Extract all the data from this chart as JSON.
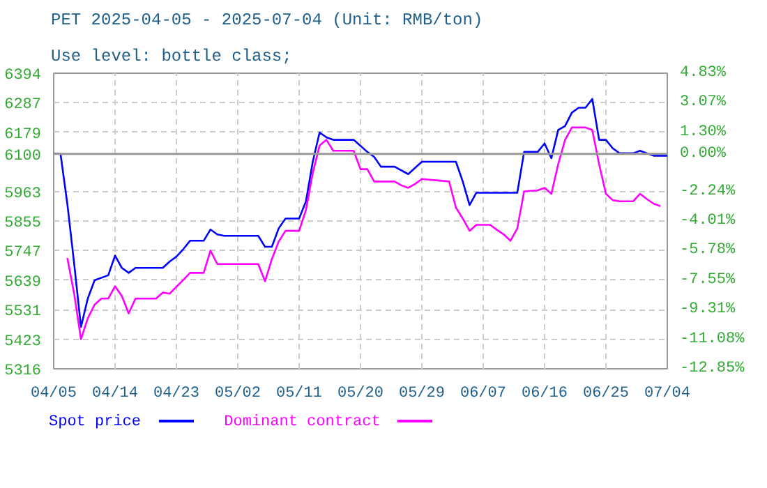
{
  "chart_data": {
    "type": "line",
    "title": "PET 2025-04-05 - 2025-07-04  (Unit: RMB/ton)",
    "subtitle": "Use level: bottle class;",
    "xlim": [
      "2025-04-05",
      "2025-07-04"
    ],
    "xticks": [
      {
        "value": "2025-04-05",
        "label": "04/05"
      },
      {
        "value": "2025-04-14",
        "label": "04/14"
      },
      {
        "value": "2025-04-23",
        "label": "04/23"
      },
      {
        "value": "2025-05-02",
        "label": "05/02"
      },
      {
        "value": "2025-05-11",
        "label": "05/11"
      },
      {
        "value": "2025-05-20",
        "label": "05/20"
      },
      {
        "value": "2025-05-29",
        "label": "05/29"
      },
      {
        "value": "2025-06-07",
        "label": "06/07"
      },
      {
        "value": "2025-06-16",
        "label": "06/16"
      },
      {
        "value": "2025-06-25",
        "label": "06/25"
      },
      {
        "value": "2025-07-04",
        "label": "07/04"
      }
    ],
    "ylim": [
      5316,
      6394
    ],
    "yticks": [
      5316,
      5423,
      5531,
      5639,
      5747,
      5855,
      5963,
      6100,
      6179,
      6287,
      6394
    ],
    "y2lim": [
      -12.85,
      4.83
    ],
    "y2ticks": [
      {
        "value": -12.85,
        "label": "-12.85%"
      },
      {
        "value": -11.08,
        "label": "-11.08%"
      },
      {
        "value": -9.31,
        "label": "-9.31%"
      },
      {
        "value": -7.55,
        "label": "-7.55%"
      },
      {
        "value": -5.78,
        "label": "-5.78%"
      },
      {
        "value": -4.01,
        "label": "-4.01%"
      },
      {
        "value": -2.24,
        "label": "-2.24%"
      },
      {
        "value": 0,
        "label": "0.00%"
      },
      {
        "value": 1.3,
        "label": "1.30%"
      },
      {
        "value": 3.07,
        "label": "3.07%"
      },
      {
        "value": 4.83,
        "label": "4.83%"
      }
    ],
    "ref_lines": [
      {
        "axis": "y",
        "value": 6100,
        "color": "#999999"
      }
    ],
    "grid": true,
    "legend": "bottom",
    "marker": "none",
    "line_style": "solid",
    "series": [
      {
        "name": "Spot price",
        "color": "#0000ff",
        "x": [
          "2025-04-05",
          "2025-04-06",
          "2025-04-07",
          "2025-04-08",
          "2025-04-09",
          "2025-04-10",
          "2025-04-11",
          "2025-04-13",
          "2025-04-14",
          "2025-04-15",
          "2025-04-16",
          "2025-04-17",
          "2025-04-21",
          "2025-04-22",
          "2025-04-23",
          "2025-04-24",
          "2025-04-25",
          "2025-04-27",
          "2025-04-28",
          "2025-04-29",
          "2025-04-30",
          "2025-05-05",
          "2025-05-06",
          "2025-05-07",
          "2025-05-08",
          "2025-05-09",
          "2025-05-11",
          "2025-05-12",
          "2025-05-13",
          "2025-05-14",
          "2025-05-15",
          "2025-05-16",
          "2025-05-19",
          "2025-05-21",
          "2025-05-22",
          "2025-05-23",
          "2025-05-25",
          "2025-05-27",
          "2025-05-29",
          "2025-06-03",
          "2025-06-04",
          "2025-06-05",
          "2025-06-06",
          "2025-06-12",
          "2025-06-13",
          "2025-06-15",
          "2025-06-16",
          "2025-06-17",
          "2025-06-18",
          "2025-06-19",
          "2025-06-20",
          "2025-06-21",
          "2025-06-22",
          "2025-06-23",
          "2025-06-24",
          "2025-06-25",
          "2025-06-26",
          "2025-06-27",
          "2025-06-29",
          "2025-06-30",
          "2025-07-01",
          "2025-07-02",
          "2025-07-04"
        ],
        "values": [
          6100,
          6100,
          5918,
          5700,
          5469,
          5572,
          5639,
          5657,
          5729,
          5684,
          5666,
          5684,
          5684,
          5707,
          5725,
          5752,
          5783,
          5783,
          5824,
          5806,
          5801,
          5801,
          5761,
          5761,
          5828,
          5864,
          5864,
          5927,
          6071,
          6178,
          6160,
          6151,
          6151,
          6107,
          6089,
          6053,
          6053,
          6026,
          6071,
          6071,
          5999,
          5913,
          5958,
          5958,
          6107,
          6107,
          6138,
          6084,
          6187,
          6201,
          6250,
          6268,
          6268,
          6300,
          6151,
          6151,
          6120,
          6102,
          6102,
          6111,
          6102,
          6093,
          6093
        ]
      },
      {
        "name": "Dominant contract",
        "color": "#ff00ff",
        "x": [
          "2025-04-07",
          "2025-04-08",
          "2025-04-09",
          "2025-04-10",
          "2025-04-11",
          "2025-04-12",
          "2025-04-13",
          "2025-04-14",
          "2025-04-15",
          "2025-04-16",
          "2025-04-17",
          "2025-04-20",
          "2025-04-21",
          "2025-04-22",
          "2025-04-23",
          "2025-04-24",
          "2025-04-25",
          "2025-04-27",
          "2025-04-28",
          "2025-04-29",
          "2025-05-05",
          "2025-05-06",
          "2025-05-07",
          "2025-05-08",
          "2025-05-09",
          "2025-05-11",
          "2025-05-12",
          "2025-05-13",
          "2025-05-14",
          "2025-05-15",
          "2025-05-16",
          "2025-05-19",
          "2025-05-20",
          "2025-05-21",
          "2025-05-22",
          "2025-05-25",
          "2025-05-26",
          "2025-05-27",
          "2025-05-28",
          "2025-05-29",
          "2025-06-02",
          "2025-06-03",
          "2025-06-04",
          "2025-06-05",
          "2025-06-06",
          "2025-06-08",
          "2025-06-09",
          "2025-06-10",
          "2025-06-11",
          "2025-06-12",
          "2025-06-13",
          "2025-06-15",
          "2025-06-16",
          "2025-06-17",
          "2025-06-18",
          "2025-06-19",
          "2025-06-20",
          "2025-06-22",
          "2025-06-23",
          "2025-06-24",
          "2025-06-25",
          "2025-06-26",
          "2025-06-27",
          "2025-06-29",
          "2025-06-30",
          "2025-07-01",
          "2025-07-02",
          "2025-07-03"
        ],
        "values": [
          5720,
          5590,
          5424,
          5500,
          5550,
          5572,
          5572,
          5617,
          5581,
          5518,
          5572,
          5572,
          5594,
          5590,
          5615,
          5640,
          5666,
          5666,
          5747,
          5698,
          5698,
          5635,
          5716,
          5780,
          5819,
          5819,
          5895,
          6030,
          6130,
          6151,
          6111,
          6111,
          6044,
          6044,
          5999,
          5999,
          5985,
          5976,
          5990,
          6008,
          5999,
          5904,
          5864,
          5819,
          5841,
          5841,
          5823,
          5806,
          5783,
          5828,
          5963,
          5967,
          5976,
          5954,
          6062,
          6150,
          6196,
          6196,
          6187,
          6062,
          5954,
          5931,
          5927,
          5927,
          5954,
          5935,
          5918,
          5909
        ]
      }
    ]
  }
}
